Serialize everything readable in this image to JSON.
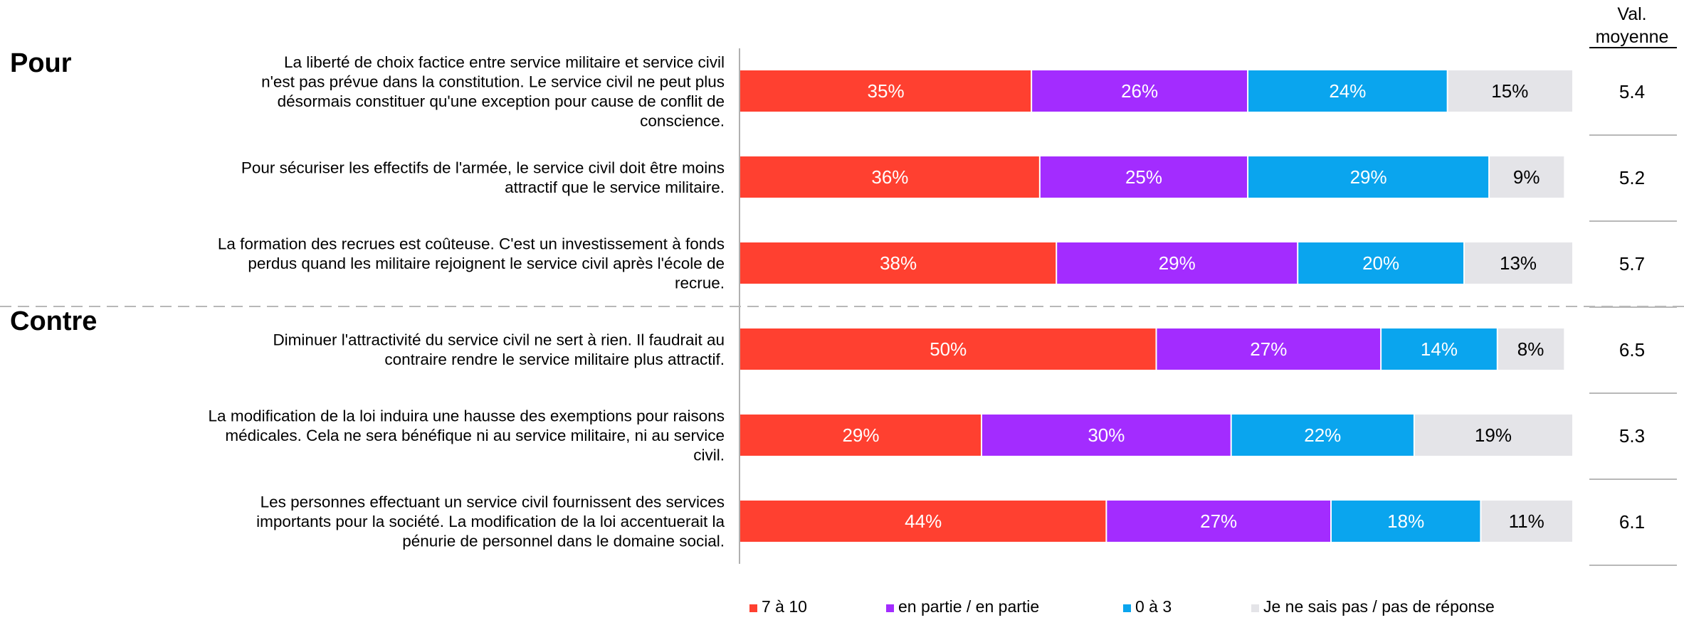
{
  "chart_data": {
    "type": "bar",
    "stacked": true,
    "orientation": "horizontal",
    "value_unit": "%",
    "xlim": [
      0,
      100
    ],
    "grid": false,
    "legend_position": "bottom",
    "value_column_header": "Val. moyenne",
    "groups": [
      {
        "label": "Pour",
        "rows": [
          0,
          1,
          2
        ]
      },
      {
        "label": "Contre",
        "rows": [
          3,
          4,
          5
        ]
      }
    ],
    "categories": [
      "La liberté de choix factice entre service militaire et service civil n'est pas prévue dans la constitution. Le service civil ne peut plus désormais constituer qu'une exception pour cause de conflit de conscience.",
      "Pour sécuriser les effectifs de l'armée, le service civil doit être moins attractif que le service militaire.",
      "La formation des recrues est coûteuse. C'est un investissement à fonds perdus quand les militaire rejoignent le service civil après l'école de recrue.",
      "Diminuer l'attractivité du service civil ne sert à rien. Il faudrait au contraire rendre le service militaire plus attractif.",
      "La modification de la loi induira une hausse des exemptions pour raisons médicales. Cela ne sera bénéfique ni au service militaire, ni au service civil.",
      "Les personnes effectuant un service civil fournissent des services importants pour la société. La modification de la loi accentuerait la pénurie de personnel dans le domaine social."
    ],
    "series": [
      {
        "name": "7 à 10",
        "color": "#ff4030",
        "label_color": "#ffffff",
        "values": [
          35,
          36,
          38,
          50,
          29,
          44
        ]
      },
      {
        "name": "en partie / en partie",
        "color": "#a32cff",
        "label_color": "#ffffff",
        "values": [
          26,
          25,
          29,
          27,
          30,
          27
        ]
      },
      {
        "name": "0 à 3",
        "color": "#0aa5ee",
        "label_color": "#ffffff",
        "values": [
          24,
          29,
          20,
          14,
          22,
          18
        ]
      },
      {
        "name": "Je ne sais pas / pas de réponse",
        "color": "#e4e4e8",
        "label_color": "#000000",
        "values": [
          15,
          9,
          13,
          8,
          19,
          11
        ]
      }
    ],
    "mean_values": [
      "5.4",
      "5.2",
      "5.7",
      "6.5",
      "5.3",
      "6.1"
    ]
  }
}
